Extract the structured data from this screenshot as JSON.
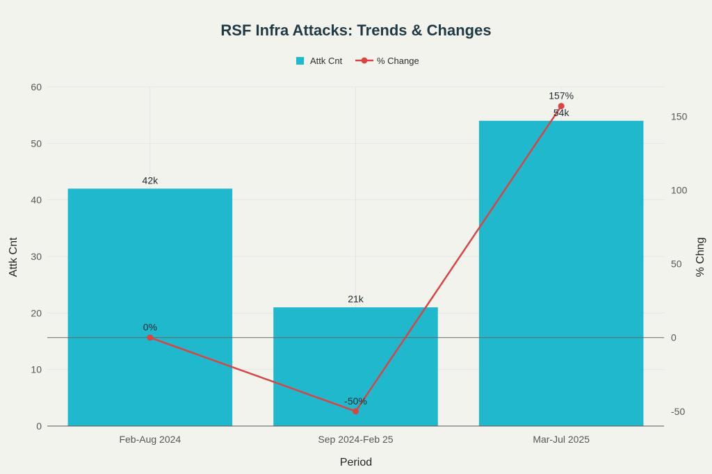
{
  "chart_data": {
    "type": "bar",
    "title": "RSF Infra Attacks: Trends & Changes",
    "xlabel": "Period",
    "ylabel": "Attk Cnt",
    "y2label": "% Chng",
    "categories": [
      "Feb-Aug 2024",
      "Sep 2024-Feb 25",
      "Mar-Jul 2025"
    ],
    "ylim": [
      0,
      60
    ],
    "y2lim": [
      -60,
      170
    ],
    "yticks": [
      0,
      10,
      20,
      30,
      40,
      50,
      60
    ],
    "y2ticks": [
      -50,
      0,
      50,
      100,
      150
    ],
    "grid": true,
    "legend": "top-center",
    "series": [
      {
        "name": "Attk Cnt",
        "type": "bar",
        "axis": "left",
        "values": [
          42,
          21,
          54
        ],
        "labels": [
          "42k",
          "21k",
          "54k"
        ],
        "color": "#20b8cc"
      },
      {
        "name": "% Change",
        "type": "line",
        "axis": "right",
        "values": [
          0,
          -50,
          157
        ],
        "labels": [
          "0%",
          "-50%",
          "157%"
        ],
        "color": "#d94444"
      }
    ]
  }
}
